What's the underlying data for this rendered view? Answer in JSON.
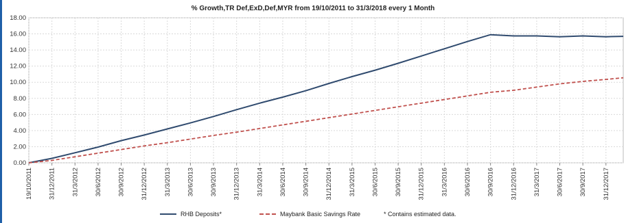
{
  "chart_data": {
    "type": "line",
    "title": "% Growth,TR Def,ExD,Def,MYR from 19/10/2011 to 31/3/2018 every 1 Month",
    "xlabel": "",
    "ylabel": "",
    "ylim": [
      0,
      18
    ],
    "yticks": [
      "0.00",
      "2.00",
      "4.00",
      "6.00",
      "8.00",
      "10.00",
      "12.00",
      "14.00",
      "16.00",
      "18.00"
    ],
    "xticks": [
      "19/10/2011",
      "31/12/2011",
      "31/3/2012",
      "30/6/2012",
      "30/9/2012",
      "31/12/2012",
      "31/3/2013",
      "30/6/2013",
      "30/9/2013",
      "31/12/2013",
      "31/3/2014",
      "30/6/2014",
      "30/9/2014",
      "31/12/2014",
      "31/3/2015",
      "30/6/2015",
      "30/9/2015",
      "31/12/2015",
      "31/3/2016",
      "30/6/2016",
      "30/9/2016",
      "31/12/2016",
      "31/3/2017",
      "30/6/2017",
      "30/9/2017",
      "31/12/2017"
    ],
    "grid": true,
    "legend_position": "bottom",
    "series": [
      {
        "name": "RHB Deposits*",
        "color": "#2f4a6e",
        "style": "solid",
        "points": [
          [
            "19/10/2011",
            0.0
          ],
          [
            "31/12/2011",
            0.55
          ],
          [
            "31/3/2012",
            1.25
          ],
          [
            "30/6/2012",
            1.95
          ],
          [
            "30/9/2012",
            2.75
          ],
          [
            "31/12/2012",
            3.45
          ],
          [
            "31/3/2013",
            4.2
          ],
          [
            "30/6/2013",
            4.95
          ],
          [
            "30/9/2013",
            5.75
          ],
          [
            "31/12/2013",
            6.6
          ],
          [
            "31/3/2014",
            7.4
          ],
          [
            "30/6/2014",
            8.15
          ],
          [
            "30/9/2014",
            8.95
          ],
          [
            "31/12/2014",
            9.85
          ],
          [
            "31/3/2015",
            10.7
          ],
          [
            "30/6/2015",
            11.5
          ],
          [
            "30/9/2015",
            12.35
          ],
          [
            "31/12/2015",
            13.25
          ],
          [
            "31/3/2016",
            14.15
          ],
          [
            "30/6/2016",
            15.05
          ],
          [
            "30/9/2016",
            15.9
          ],
          [
            "31/12/2016",
            15.75
          ],
          [
            "31/3/2017",
            15.75
          ],
          [
            "30/6/2017",
            15.65
          ],
          [
            "30/9/2017",
            15.75
          ],
          [
            "31/12/2017",
            15.65
          ],
          [
            "31/3/2018",
            15.7
          ]
        ]
      },
      {
        "name": "Maybank Basic Savings Rate",
        "color": "#c0504d",
        "style": "dashed",
        "points": [
          [
            "19/10/2011",
            0.0
          ],
          [
            "31/12/2011",
            0.3
          ],
          [
            "31/3/2012",
            0.75
          ],
          [
            "30/6/2012",
            1.2
          ],
          [
            "30/9/2012",
            1.65
          ],
          [
            "31/12/2012",
            2.1
          ],
          [
            "31/3/2013",
            2.5
          ],
          [
            "30/6/2013",
            2.95
          ],
          [
            "30/9/2013",
            3.4
          ],
          [
            "31/12/2013",
            3.8
          ],
          [
            "31/3/2014",
            4.25
          ],
          [
            "30/6/2014",
            4.7
          ],
          [
            "30/9/2014",
            5.15
          ],
          [
            "31/12/2014",
            5.6
          ],
          [
            "31/3/2015",
            6.05
          ],
          [
            "30/6/2015",
            6.5
          ],
          [
            "30/9/2015",
            6.95
          ],
          [
            "31/12/2015",
            7.4
          ],
          [
            "31/3/2016",
            7.85
          ],
          [
            "30/6/2016",
            8.3
          ],
          [
            "30/9/2016",
            8.75
          ],
          [
            "31/12/2016",
            9.0
          ],
          [
            "31/3/2017",
            9.4
          ],
          [
            "30/6/2017",
            9.8
          ],
          [
            "30/9/2017",
            10.1
          ],
          [
            "31/12/2017",
            10.35
          ],
          [
            "31/3/2018",
            10.55
          ]
        ]
      }
    ],
    "note": "*  Contains estimated data."
  }
}
